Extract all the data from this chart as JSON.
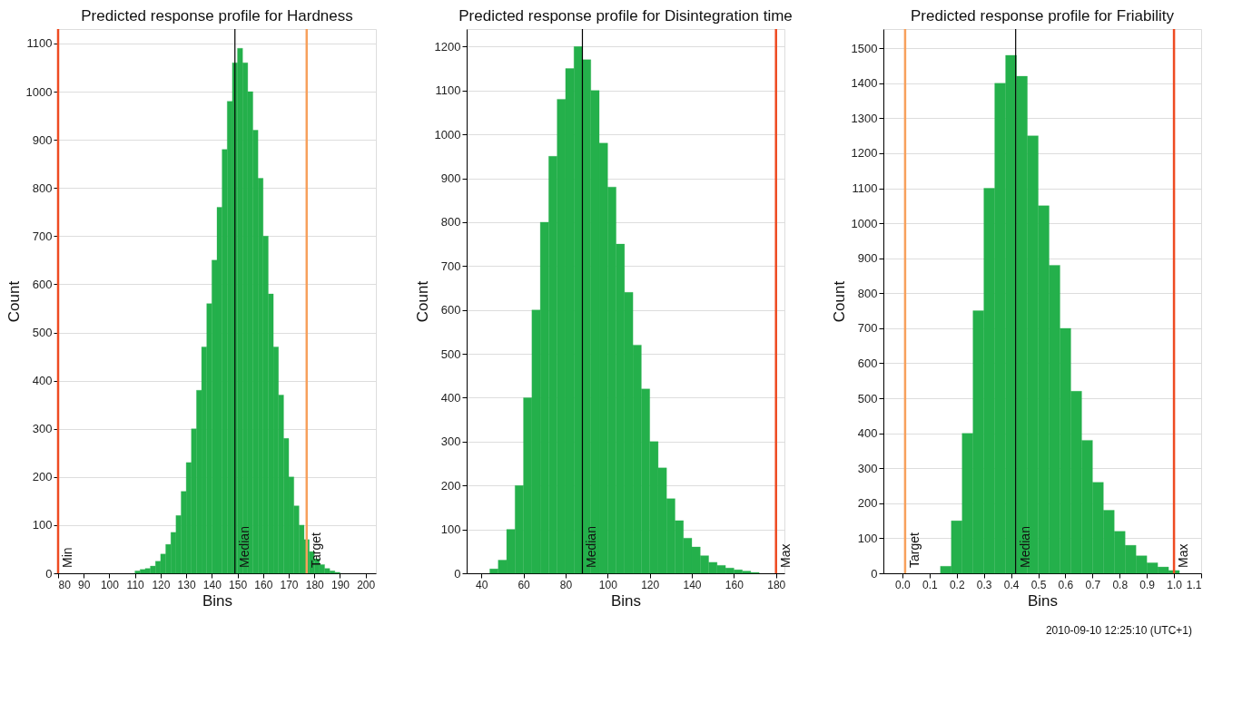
{
  "chart_data": [
    {
      "type": "histogram",
      "title": "Predicted response profile for Hardness",
      "xlabel": "Bins",
      "ylabel": "Count",
      "bins": [
        110,
        112,
        114,
        116,
        118,
        120,
        122,
        124,
        126,
        128,
        130,
        132,
        134,
        136,
        138,
        140,
        142,
        144,
        146,
        148,
        150,
        152,
        154,
        156,
        158,
        160,
        162,
        164,
        166,
        168,
        170,
        172,
        174,
        176,
        178,
        180,
        182,
        184,
        186,
        188,
        190
      ],
      "values": [
        5,
        8,
        10,
        15,
        25,
        40,
        60,
        85,
        120,
        170,
        230,
        300,
        380,
        470,
        560,
        650,
        760,
        880,
        980,
        1060,
        1090,
        1060,
        1000,
        920,
        820,
        700,
        580,
        470,
        370,
        280,
        200,
        140,
        100,
        70,
        45,
        30,
        18,
        10,
        5,
        2
      ],
      "color": "#24b04b",
      "xlim": [
        80,
        204
      ],
      "xticks": [
        80,
        90,
        100,
        110,
        120,
        130,
        140,
        150,
        160,
        170,
        180,
        190,
        200
      ],
      "ylim": [
        0,
        1130
      ],
      "yticks": [
        0,
        100,
        200,
        300,
        400,
        500,
        600,
        700,
        800,
        900,
        1000,
        1100
      ],
      "grid": "y",
      "ref_lines": [
        {
          "axis": "x",
          "value": 80,
          "label": "Min",
          "color": "#ee4b22"
        },
        {
          "axis": "x",
          "value": 149,
          "label": "Median",
          "color": "#000000"
        },
        {
          "axis": "x",
          "value": 177,
          "label": "Target",
          "color": "#f7a05c"
        }
      ]
    },
    {
      "type": "histogram",
      "title": "Predicted response profile for Disintegration time",
      "xlabel": "Bins",
      "ylabel": "Count",
      "bins": [
        44,
        48,
        52,
        56,
        60,
        64,
        68,
        72,
        76,
        80,
        84,
        88,
        92,
        96,
        100,
        104,
        108,
        112,
        116,
        120,
        124,
        128,
        132,
        136,
        140,
        144,
        148,
        152,
        156,
        160,
        164,
        168,
        172
      ],
      "values": [
        10,
        30,
        100,
        200,
        400,
        600,
        800,
        950,
        1080,
        1150,
        1200,
        1170,
        1100,
        980,
        880,
        750,
        640,
        520,
        420,
        300,
        240,
        170,
        120,
        80,
        60,
        40,
        25,
        18,
        12,
        8,
        5,
        2
      ],
      "color": "#24b04b",
      "xlim": [
        33,
        184
      ],
      "xticks": [
        40,
        60,
        80,
        100,
        120,
        140,
        160,
        180
      ],
      "ylim": [
        0,
        1240
      ],
      "yticks": [
        0,
        100,
        200,
        300,
        400,
        500,
        600,
        700,
        800,
        900,
        1000,
        1100,
        1200
      ],
      "grid": "y",
      "ref_lines": [
        {
          "axis": "x",
          "value": 88,
          "label": "Median",
          "color": "#000000"
        },
        {
          "axis": "x",
          "value": 180,
          "label": "Max",
          "color": "#ee4b22"
        }
      ]
    },
    {
      "type": "histogram",
      "title": "Predicted response profile for Friability",
      "xlabel": "Bins",
      "ylabel": "Count",
      "bins": [
        0.14,
        0.18,
        0.22,
        0.26,
        0.3,
        0.34,
        0.38,
        0.42,
        0.46,
        0.5,
        0.54,
        0.58,
        0.62,
        0.66,
        0.7,
        0.74,
        0.78,
        0.82,
        0.86,
        0.9,
        0.94,
        0.98,
        1.02
      ],
      "values": [
        20,
        150,
        400,
        750,
        1100,
        1400,
        1480,
        1420,
        1250,
        1050,
        880,
        700,
        520,
        380,
        260,
        180,
        120,
        80,
        50,
        30,
        18,
        8
      ],
      "color": "#24b04b",
      "xlim": [
        -0.07,
        1.1
      ],
      "xticks": [
        {
          "value": 0,
          "label": "0.0"
        },
        0.1,
        0.2,
        0.3,
        0.4,
        0.5,
        0.6,
        0.7,
        0.8,
        0.9,
        {
          "value": 1,
          "label": "1.0"
        },
        1.1
      ],
      "ylim": [
        0,
        1555
      ],
      "yticks": [
        0,
        100,
        200,
        300,
        400,
        500,
        600,
        700,
        800,
        900,
        1000,
        1100,
        1200,
        1300,
        1400,
        1500
      ],
      "grid": "y",
      "ref_lines": [
        {
          "axis": "x",
          "value": 0.01,
          "label": "Target",
          "color": "#f7a05c"
        },
        {
          "axis": "x",
          "value": 0.417,
          "label": "Median",
          "color": "#000000"
        },
        {
          "axis": "x",
          "value": 1.0,
          "label": "Max",
          "color": "#ee4b22"
        }
      ],
      "annotations": [
        "2010-09-10 12:25:10 (UTC+1)"
      ]
    }
  ]
}
